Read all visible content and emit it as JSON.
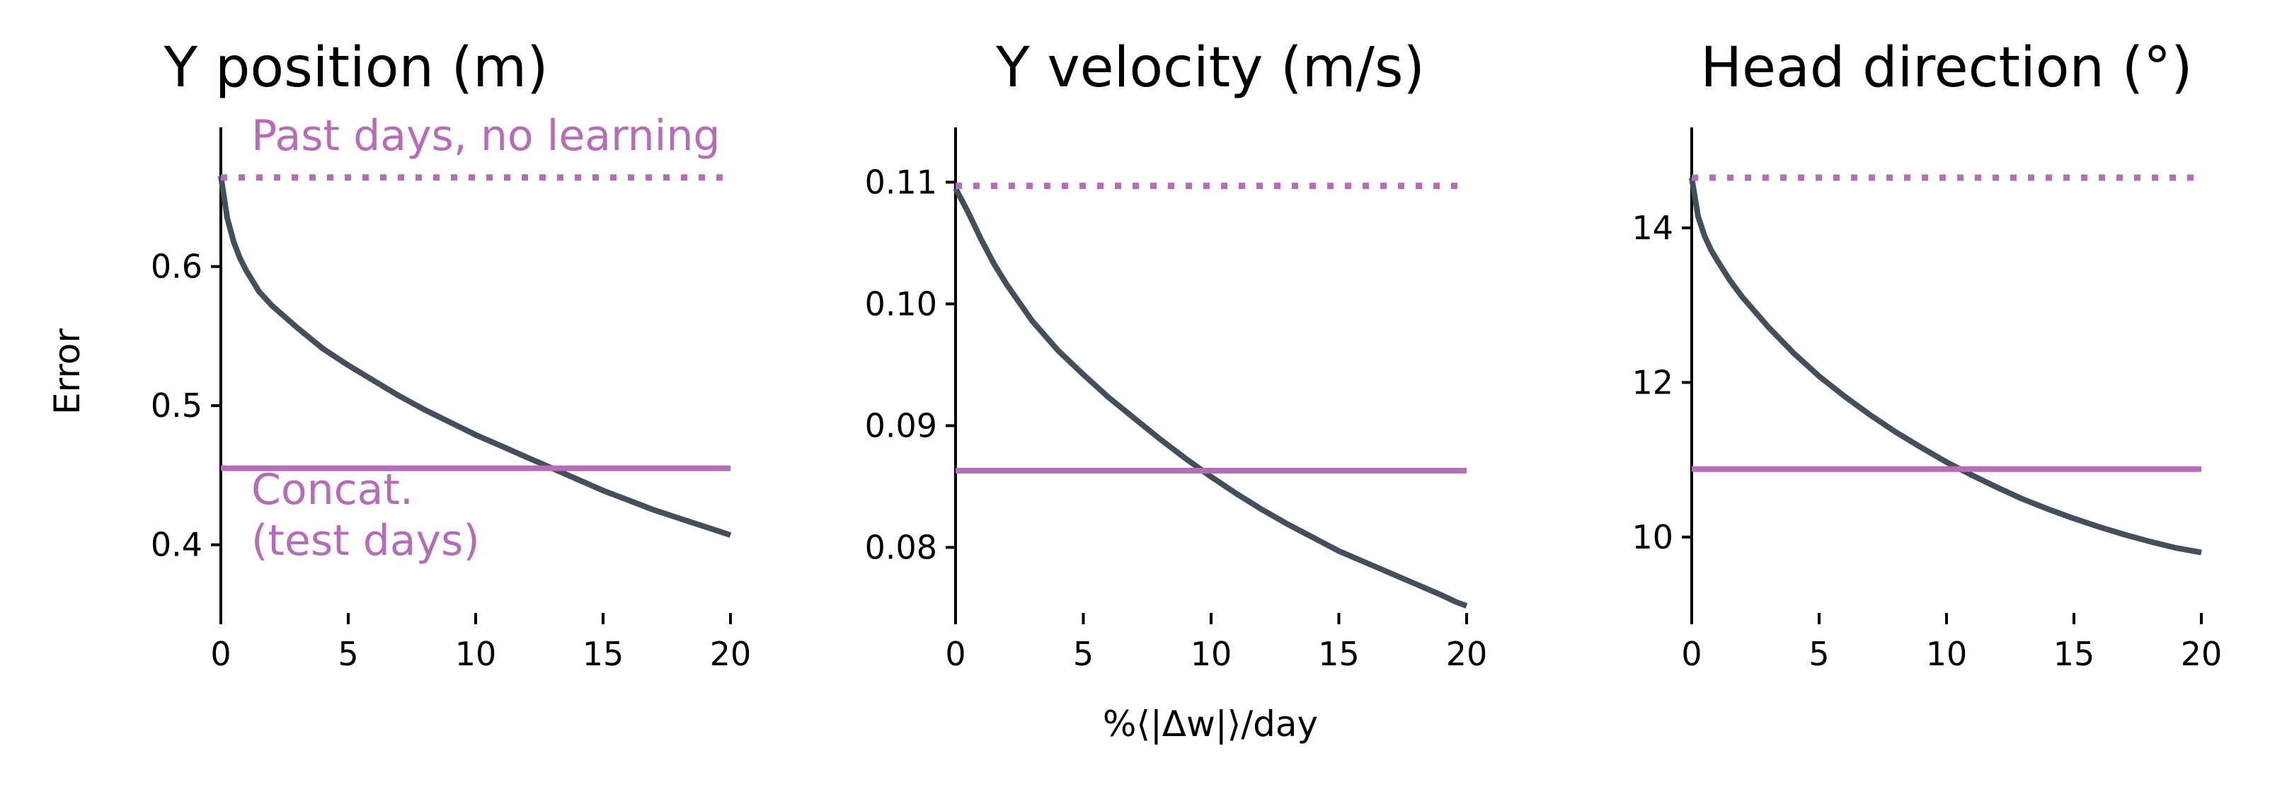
{
  "colors": {
    "model": "#434f5a",
    "baseline": "#b56db8",
    "axis": "#000000"
  },
  "figure": {
    "ylabel": "Error",
    "xlabel": "%⟨|Δw|⟩/day"
  },
  "annotations": {
    "past_days": "Past days, no learning",
    "concat_line1": "Concat.",
    "concat_line2": "(test days)"
  },
  "chart_data": [
    {
      "type": "line",
      "title": "Y position (m)",
      "xlim": [
        0,
        20
      ],
      "ylim": [
        0.35,
        0.7
      ],
      "xticks": [
        0,
        5,
        10,
        15,
        20
      ],
      "yticks": [
        0.4,
        0.5,
        0.6
      ],
      "ytick_labels": [
        "0.4",
        "0.5",
        "0.6"
      ],
      "series": [
        {
          "style": "solid-dark",
          "x": [
            0,
            0.25,
            0.5,
            0.75,
            1,
            1.5,
            2,
            3,
            4,
            5,
            6,
            7,
            8,
            9,
            10,
            11,
            12,
            13,
            14,
            15,
            16,
            17,
            18,
            19,
            20
          ],
          "y": [
            0.665,
            0.635,
            0.618,
            0.606,
            0.597,
            0.582,
            0.572,
            0.556,
            0.541,
            0.529,
            0.518,
            0.507,
            0.497,
            0.488,
            0.479,
            0.471,
            0.463,
            0.455,
            0.447,
            0.439,
            0.432,
            0.425,
            0.419,
            0.413,
            0.407
          ]
        },
        {
          "name": "Past days, no learning",
          "style": "dotted",
          "x": [
            0,
            20
          ],
          "y": [
            0.664,
            0.664
          ]
        },
        {
          "name": "Concat. (test days)",
          "style": "solid-purple",
          "x": [
            0,
            20
          ],
          "y": [
            0.455,
            0.455
          ]
        }
      ]
    },
    {
      "type": "line",
      "title": "Y velocity (m/s)",
      "xlim": [
        0,
        20
      ],
      "ylim": [
        0.0745,
        0.1145
      ],
      "xticks": [
        0,
        5,
        10,
        15,
        20
      ],
      "yticks": [
        0.08,
        0.09,
        0.1,
        0.11
      ],
      "ytick_labels": [
        "0.08",
        "0.09",
        "0.10",
        "0.11"
      ],
      "series": [
        {
          "style": "solid-dark",
          "x": [
            0,
            0.5,
            1,
            1.5,
            2,
            3,
            4,
            5,
            6,
            7,
            8,
            9,
            10,
            11,
            12,
            13,
            14,
            15,
            16,
            17,
            18,
            19,
            19.6,
            20
          ],
          "y": [
            0.1095,
            0.1075,
            0.1053,
            0.1033,
            0.1016,
            0.0986,
            0.0962,
            0.0942,
            0.0923,
            0.0906,
            0.0889,
            0.0873,
            0.0858,
            0.0844,
            0.0831,
            0.0819,
            0.0808,
            0.0797,
            0.0788,
            0.0779,
            0.077,
            0.0761,
            0.0755,
            0.0752
          ]
        },
        {
          "name": "Past days, no learning",
          "style": "dotted",
          "x": [
            0,
            20
          ],
          "y": [
            0.1097,
            0.1097
          ]
        },
        {
          "name": "Concat. (test days)",
          "style": "solid-purple",
          "x": [
            0,
            20
          ],
          "y": [
            0.0863,
            0.0863
          ]
        }
      ]
    },
    {
      "type": "line",
      "title": "Head direction (°)",
      "xlim": [
        0,
        20
      ],
      "ylim": [
        9,
        15.3
      ],
      "xticks": [
        0,
        5,
        10,
        15,
        20
      ],
      "yticks": [
        10,
        12,
        14
      ],
      "ytick_labels": [
        "10",
        "12",
        "14"
      ],
      "series": [
        {
          "style": "solid-dark",
          "x": [
            0,
            0.25,
            0.5,
            0.75,
            1,
            1.5,
            2,
            3,
            4,
            5,
            6,
            7,
            8,
            9,
            10,
            11,
            12,
            13,
            14,
            15,
            16,
            17,
            18,
            19,
            20
          ],
          "y": [
            14.65,
            14.15,
            13.9,
            13.72,
            13.58,
            13.32,
            13.1,
            12.72,
            12.38,
            12.08,
            11.82,
            11.58,
            11.36,
            11.16,
            10.97,
            10.8,
            10.64,
            10.49,
            10.36,
            10.24,
            10.13,
            10.03,
            9.94,
            9.86,
            9.8
          ]
        },
        {
          "name": "Past days, no learning",
          "style": "dotted",
          "x": [
            0,
            20
          ],
          "y": [
            14.65,
            14.65
          ]
        },
        {
          "name": "Concat. (test days)",
          "style": "solid-purple",
          "x": [
            0,
            20
          ],
          "y": [
            10.88,
            10.88
          ]
        }
      ]
    }
  ]
}
